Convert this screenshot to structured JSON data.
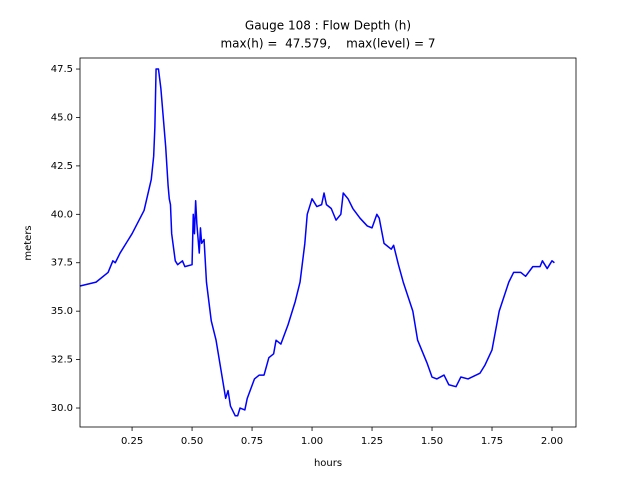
{
  "chart_data": {
    "type": "line",
    "title": "Gauge 108 : Flow Depth (h)",
    "subtitle": "max(h) =  47.579,    max(level) = 7",
    "x_label": "hours",
    "y_label": "meters",
    "xlim": [
      0.033,
      2.1
    ],
    "ylim": [
      29.02,
      48.07
    ],
    "xticks": [
      0.25,
      {
        "value": 0.5,
        "label": "0.50"
      },
      0.75,
      {
        "value": 1.0,
        "label": "1.00"
      },
      1.25,
      {
        "value": 1.5,
        "label": "1.50"
      },
      1.75,
      {
        "value": 2.0,
        "label": "2.00"
      }
    ],
    "yticks": [
      {
        "value": 30.0,
        "label": "30.0"
      },
      32.5,
      {
        "value": 35.0,
        "label": "35.0"
      },
      37.5,
      {
        "value": 40.0,
        "label": "40.0"
      },
      42.5,
      {
        "value": 45.0,
        "label": "45.0"
      },
      47.5
    ],
    "series": [
      {
        "color": "#0000ff",
        "x": [
          0.033,
          0.1,
          0.15,
          0.17,
          0.18,
          0.2,
          0.25,
          0.3,
          0.33,
          0.34,
          0.345,
          0.35,
          0.36,
          0.37,
          0.39,
          0.4,
          0.405,
          0.41,
          0.415,
          0.43,
          0.44,
          0.46,
          0.47,
          0.5,
          0.505,
          0.51,
          0.515,
          0.52,
          0.53,
          0.535,
          0.54,
          0.55,
          0.56,
          0.58,
          0.6,
          0.62,
          0.64,
          0.65,
          0.66,
          0.68,
          0.69,
          0.7,
          0.72,
          0.73,
          0.76,
          0.78,
          0.8,
          0.82,
          0.84,
          0.85,
          0.87,
          0.9,
          0.93,
          0.95,
          0.97,
          0.98,
          1.0,
          1.02,
          1.04,
          1.05,
          1.06,
          1.08,
          1.1,
          1.12,
          1.13,
          1.15,
          1.17,
          1.2,
          1.23,
          1.25,
          1.27,
          1.28,
          1.3,
          1.33,
          1.34,
          1.36,
          1.38,
          1.42,
          1.44,
          1.48,
          1.5,
          1.52,
          1.55,
          1.57,
          1.6,
          1.62,
          1.65,
          1.7,
          1.72,
          1.75,
          1.78,
          1.82,
          1.84,
          1.87,
          1.89,
          1.92,
          1.95,
          1.96,
          1.98,
          2.0,
          2.01
        ],
        "values": [
          36.3,
          36.5,
          37.0,
          37.6,
          37.5,
          38.0,
          39.0,
          40.2,
          41.8,
          43.0,
          44.5,
          47.5,
          47.5,
          46.5,
          43.5,
          41.5,
          40.8,
          40.5,
          39.0,
          37.6,
          37.4,
          37.6,
          37.3,
          37.4,
          40.0,
          39.0,
          40.7,
          39.5,
          38.0,
          39.3,
          38.5,
          38.7,
          36.5,
          34.5,
          33.5,
          32.0,
          30.5,
          30.9,
          30.1,
          29.6,
          29.6,
          30.0,
          29.9,
          30.5,
          31.5,
          31.7,
          31.7,
          32.6,
          32.8,
          33.5,
          33.3,
          34.3,
          35.5,
          36.5,
          38.5,
          40.0,
          40.8,
          40.4,
          40.5,
          41.1,
          40.5,
          40.3,
          39.7,
          40.0,
          41.1,
          40.8,
          40.3,
          39.8,
          39.4,
          39.3,
          40.0,
          39.8,
          38.5,
          38.2,
          38.4,
          37.4,
          36.5,
          35.0,
          33.5,
          32.3,
          31.6,
          31.5,
          31.7,
          31.2,
          31.1,
          31.6,
          31.5,
          31.8,
          32.2,
          33.0,
          35.0,
          36.5,
          37.0,
          37.0,
          36.8,
          37.3,
          37.3,
          37.6,
          37.2,
          37.6,
          37.5
        ]
      }
    ]
  }
}
